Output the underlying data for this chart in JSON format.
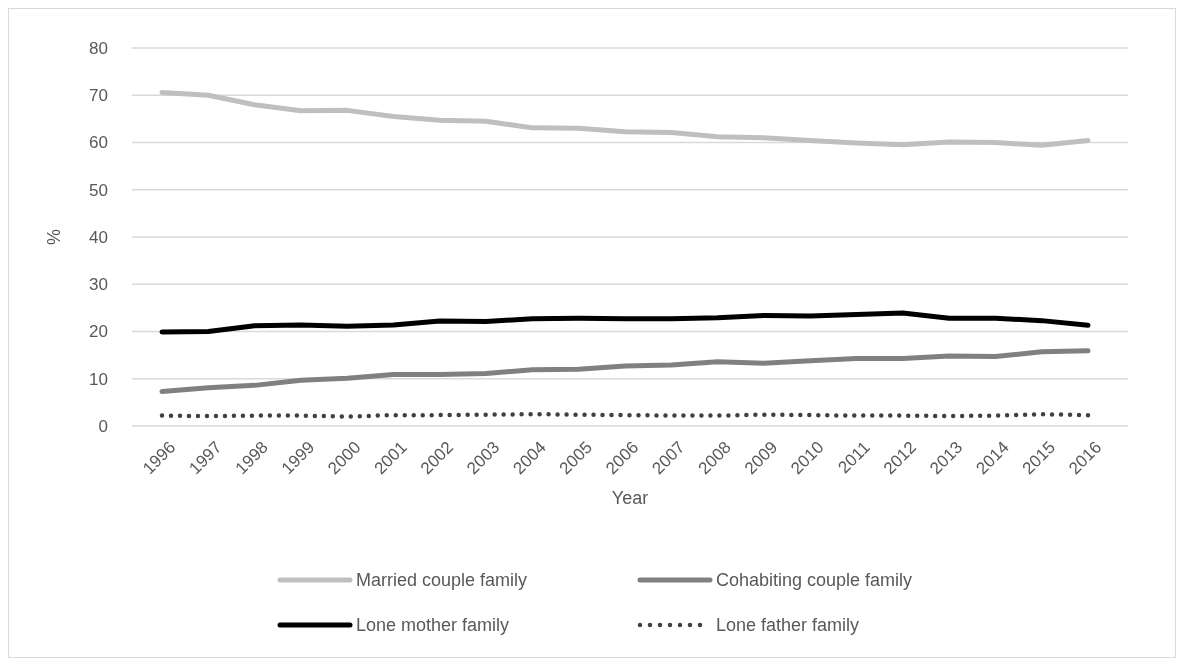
{
  "chart_data": {
    "type": "line",
    "xlabel": "Year",
    "ylabel": "%",
    "categories": [
      "1996",
      "1997",
      "1998",
      "1999",
      "2000",
      "2001",
      "2002",
      "2003",
      "2004",
      "2005",
      "2006",
      "2007",
      "2008",
      "2009",
      "2010",
      "2011",
      "2012",
      "2013",
      "2014",
      "2015",
      "2016"
    ],
    "series": [
      {
        "name": "Married couple family",
        "color": "#bfbfbf",
        "values": [
          70.6,
          70,
          68,
          66.7,
          66.8,
          65.5,
          64.7,
          64.5,
          63.1,
          63,
          62.3,
          62.1,
          61.2,
          61,
          60.4,
          59.9,
          59.5,
          60.1,
          60,
          59.4,
          60.4
        ]
      },
      {
        "name": "Cohabiting couple family",
        "color": "#808080",
        "values": [
          7.3,
          8.1,
          8.6,
          9.7,
          10.1,
          10.9,
          10.9,
          11.1,
          11.9,
          12,
          12.7,
          12.9,
          13.6,
          13.3,
          13.8,
          14.3,
          14.3,
          14.8,
          14.7,
          15.7,
          15.9
        ]
      },
      {
        "name": "Lone mother family",
        "color": "#000000",
        "values": [
          19.9,
          20,
          21.2,
          21.4,
          21.1,
          21.4,
          22.2,
          22.1,
          22.7,
          22.8,
          22.7,
          22.7,
          22.9,
          23.4,
          23.3,
          23.6,
          23.9,
          22.8,
          22.8,
          22.3,
          21.3
        ]
      },
      {
        "name": "Lone father family",
        "color": "#404040",
        "line_style": "dotted",
        "values": [
          2.2,
          2.1,
          2.2,
          2.2,
          2.0,
          2.3,
          2.3,
          2.4,
          2.5,
          2.4,
          2.3,
          2.2,
          2.2,
          2.4,
          2.3,
          2.2,
          2.2,
          2.1,
          2.2,
          2.5,
          2.3
        ]
      }
    ],
    "ylim": [
      0,
      80
    ],
    "yticks": [
      0,
      10,
      20,
      30,
      40,
      50,
      60,
      70,
      80
    ],
    "grid": "y",
    "legend": "bottom",
    "line_style": "solid",
    "marker": "none"
  }
}
